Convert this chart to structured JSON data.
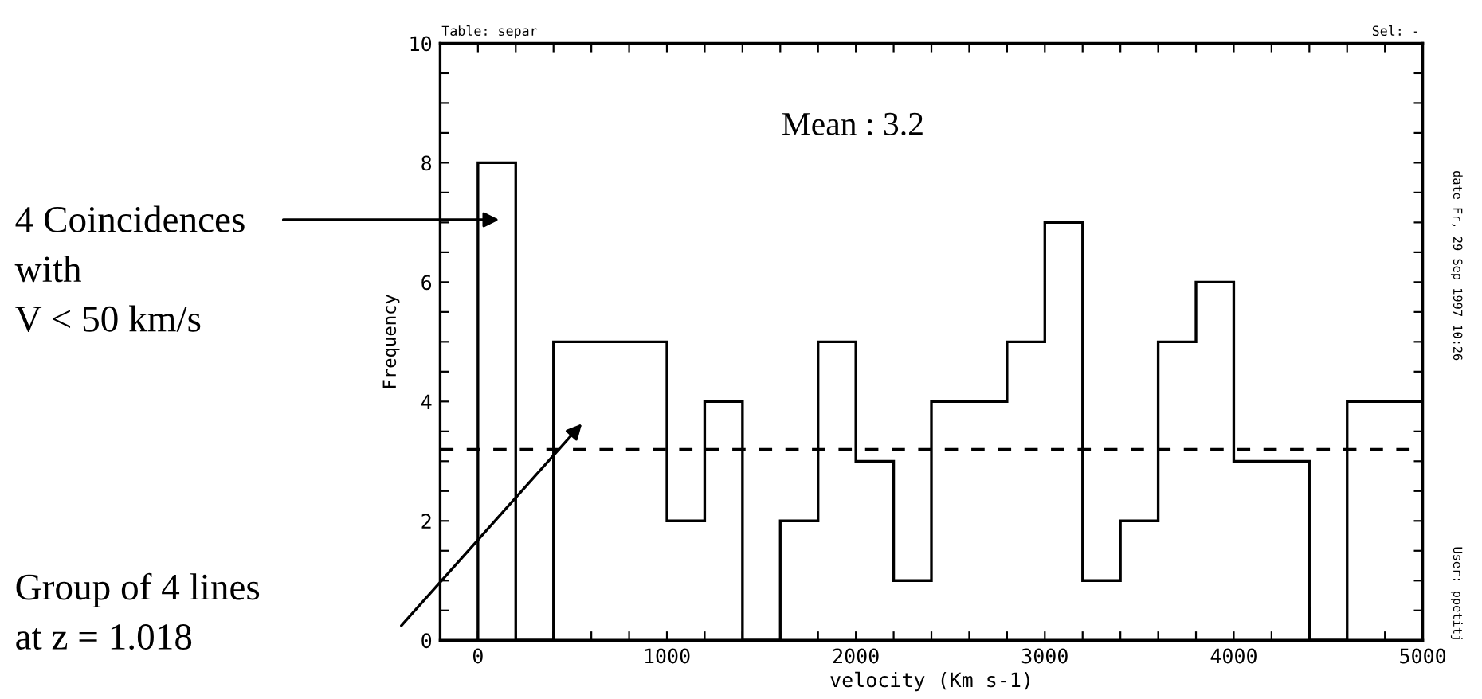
{
  "chart_data": {
    "type": "histogram",
    "xlabel": "velocity (Km s-1)",
    "ylabel": "Frequency",
    "bins": [
      0,
      200,
      400,
      600,
      800,
      1000,
      1200,
      1400,
      1600,
      1800,
      2000,
      2200,
      2400,
      2600,
      2800,
      3000,
      3200,
      3400,
      3600,
      3800,
      4000,
      4200,
      4400,
      4600,
      4800,
      5000
    ],
    "values": [
      8,
      0,
      5,
      5,
      5,
      2,
      4,
      0,
      2,
      5,
      3,
      1,
      4,
      4,
      5,
      7,
      1,
      2,
      5,
      6,
      3,
      3,
      0,
      4,
      4
    ],
    "color": "#000000",
    "xlim": [
      -200,
      5000
    ],
    "ylim": [
      0,
      10
    ],
    "xticks": [
      0,
      {
        "value": 200,
        "label": null
      },
      {
        "value": 400,
        "label": null
      },
      {
        "value": 600,
        "label": null
      },
      {
        "value": 800,
        "label": null
      },
      1000,
      {
        "value": 1200,
        "label": null
      },
      {
        "value": 1400,
        "label": null
      },
      {
        "value": 1600,
        "label": null
      },
      {
        "value": 1800,
        "label": null
      },
      2000,
      {
        "value": 2200,
        "label": null
      },
      {
        "value": 2400,
        "label": null
      },
      {
        "value": 2600,
        "label": null
      },
      {
        "value": 2800,
        "label": null
      },
      3000,
      {
        "value": 3200,
        "label": null
      },
      {
        "value": 3400,
        "label": null
      },
      {
        "value": 3600,
        "label": null
      },
      {
        "value": 3800,
        "label": null
      },
      4000,
      {
        "value": 4200,
        "label": null
      },
      {
        "value": 4400,
        "label": null
      },
      {
        "value": 4600,
        "label": null
      },
      {
        "value": 4800,
        "label": null
      },
      5000
    ],
    "yticks": [
      0,
      {
        "value": 0.5,
        "label": null
      },
      {
        "value": 1,
        "label": null
      },
      {
        "value": 1.5,
        "label": null
      },
      2,
      {
        "value": 2.5,
        "label": null
      },
      {
        "value": 3,
        "label": null
      },
      {
        "value": 3.5,
        "label": null
      },
      4,
      {
        "value": 4.5,
        "label": null
      },
      {
        "value": 5,
        "label": null
      },
      {
        "value": 5.5,
        "label": null
      },
      6,
      {
        "value": 6.5,
        "label": null
      },
      {
        "value": 7,
        "label": null
      },
      {
        "value": 7.5,
        "label": null
      },
      8,
      {
        "value": 8.5,
        "label": null
      },
      {
        "value": 9,
        "label": null
      },
      {
        "value": 9.5,
        "label": null
      },
      10
    ],
    "grid": false,
    "ref_lines": [
      {
        "axis": "y",
        "value": 3.2,
        "label": "Mean : 3.2",
        "color": "#000000",
        "line_style": "dashed"
      }
    ],
    "annotations": [
      "4 Coincidences\nwith\nV < 50 km/s",
      "Group of 4 lines\nat z = 1.018",
      "Table: separ",
      "Sel: -",
      "date Fr, 29 Sep 1997 10:26",
      "User: ppetitj"
    ]
  }
}
